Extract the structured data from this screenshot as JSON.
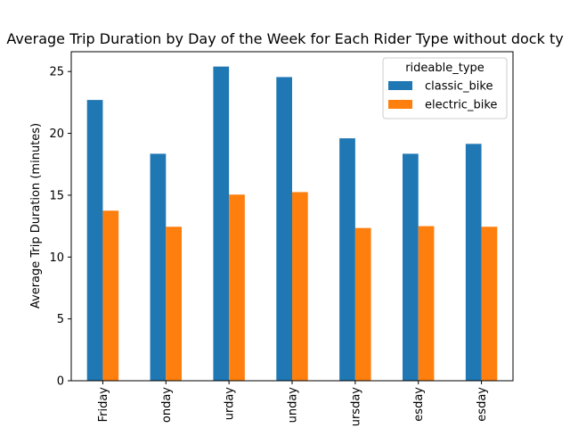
{
  "chart_data": {
    "type": "bar",
    "title": "Average Trip Duration by Day of the Week for Each Rider Type without dock ty",
    "xlabel": "",
    "ylabel": "Average Trip Duration (minutes)",
    "categories": [
      "Friday",
      "onday",
      "urday",
      "unday",
      "ursday",
      "esday",
      "esday"
    ],
    "series": [
      {
        "name": "classic_bike",
        "color": "#1f77b4",
        "values": [
          22.7,
          18.35,
          25.4,
          24.55,
          19.6,
          18.35,
          19.15
        ]
      },
      {
        "name": "electric_bike",
        "color": "#ff7f0e",
        "values": [
          13.75,
          12.45,
          15.05,
          15.25,
          12.35,
          12.5,
          12.45
        ]
      }
    ],
    "ylim": [
      0,
      26.6
    ],
    "yticks": [
      0,
      5,
      10,
      15,
      20,
      25
    ],
    "grid": false,
    "legend": {
      "title": "rideable_type",
      "placement": "top-right"
    }
  }
}
